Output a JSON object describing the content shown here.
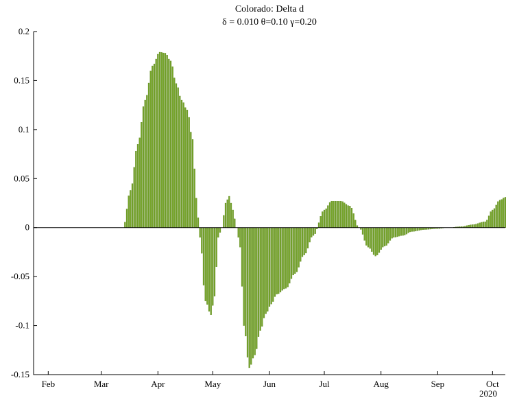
{
  "chart_data": {
    "type": "bar",
    "title": "Colorado: Delta d",
    "subtitle": "δ = 0.010  θ=0.10  γ=0.20",
    "xlabel": "",
    "ylabel": "",
    "ylim": [
      -0.15,
      0.2
    ],
    "yticks": [
      -0.15,
      -0.1,
      -0.05,
      0,
      0.05,
      0.1,
      0.15,
      0.2
    ],
    "ytick_labels": [
      "-0.15",
      "-0.1",
      "-0.05",
      "0",
      "0.05",
      "0.1",
      "0.15",
      "0.2"
    ],
    "xlim": [
      "2020-01-24",
      "2020-10-08"
    ],
    "xticks": [
      {
        "date": "2020-02-01",
        "label": "Feb"
      },
      {
        "date": "2020-03-01",
        "label": "Mar"
      },
      {
        "date": "2020-04-01",
        "label": "Apr"
      },
      {
        "date": "2020-05-01",
        "label": "May"
      },
      {
        "date": "2020-06-01",
        "label": "Jun"
      },
      {
        "date": "2020-07-01",
        "label": "Jul"
      },
      {
        "date": "2020-08-01",
        "label": "Aug"
      },
      {
        "date": "2020-09-01",
        "label": "Sep"
      },
      {
        "date": "2020-10-01",
        "label": "Oct"
      }
    ],
    "year_label": "2020",
    "grid": false,
    "bar_color": "#76a52a",
    "bar_edge_color": "#4e7a12",
    "series": [
      {
        "x": [
          "2020-03-13",
          "2020-03-17",
          "2020-03-21",
          "2020-03-25",
          "2020-03-29",
          "2020-04-02",
          "2020-04-05",
          "2020-04-08",
          "2020-04-11",
          "2020-04-14",
          "2020-04-17",
          "2020-04-20",
          "2020-04-22",
          "2020-04-24",
          "2020-04-27",
          "2020-04-30",
          "2020-05-02",
          "2020-05-04",
          "2020-05-06",
          "2020-05-08",
          "2020-05-10",
          "2020-05-12",
          "2020-05-14",
          "2020-05-16",
          "2020-05-18",
          "2020-05-21",
          "2020-05-24",
          "2020-05-27",
          "2020-05-30",
          "2020-06-02",
          "2020-06-05",
          "2020-06-10",
          "2020-06-15",
          "2020-06-20",
          "2020-06-25",
          "2020-07-01",
          "2020-07-05",
          "2020-07-10",
          "2020-07-15",
          "2020-07-20",
          "2020-07-25",
          "2020-07-29",
          "2020-08-03",
          "2020-08-08",
          "2020-08-13",
          "2020-08-18",
          "2020-08-25",
          "2020-09-01",
          "2020-09-07",
          "2020-09-14",
          "2020-09-20",
          "2020-09-27",
          "2020-10-01",
          "2020-10-05",
          "2020-10-08"
        ],
        "values": [
          0.0,
          0.038,
          0.085,
          0.13,
          0.165,
          0.179,
          0.178,
          0.17,
          0.147,
          0.13,
          0.12,
          0.09,
          0.03,
          -0.01,
          -0.075,
          -0.089,
          -0.07,
          -0.01,
          0.0,
          0.025,
          0.032,
          0.018,
          0.0,
          -0.02,
          -0.1,
          -0.143,
          -0.13,
          -0.105,
          -0.088,
          -0.078,
          -0.068,
          -0.062,
          -0.047,
          -0.028,
          -0.008,
          0.018,
          0.027,
          0.027,
          0.022,
          0.0,
          -0.02,
          -0.029,
          -0.019,
          -0.01,
          -0.008,
          -0.004,
          -0.002,
          -0.001,
          0.0,
          0.001,
          0.003,
          0.006,
          0.018,
          0.028,
          0.031
        ]
      }
    ]
  }
}
